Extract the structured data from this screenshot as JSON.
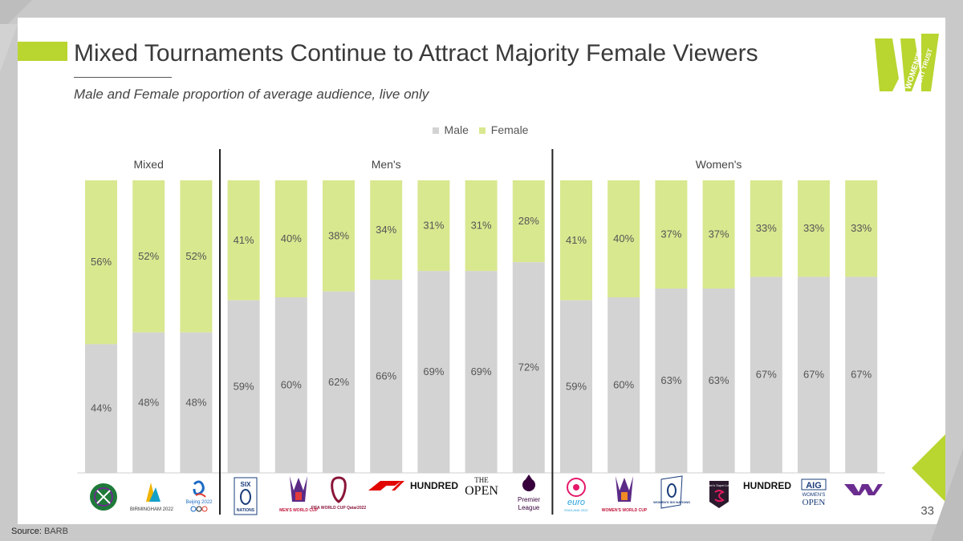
{
  "slide": {
    "title": "Mixed Tournaments Continue to Attract Majority Female Viewers",
    "subtitle": "Male and Female proportion of average audience, live only",
    "page_number": "33",
    "source_label": "Source:",
    "source_value": "BARB",
    "logo_text": "WOMEN'S SPORT TRUST"
  },
  "colors": {
    "male": "#d3d3d3",
    "female": "#d8e88f",
    "accent": "#b8d530",
    "divider": "#222222",
    "purple": "#6b2c8f"
  },
  "chart_data": {
    "type": "bar",
    "stacked": true,
    "normalized_100": true,
    "legend": [
      "Male",
      "Female"
    ],
    "legend_position": "top-center",
    "groups": [
      {
        "name": "Mixed",
        "count": 3
      },
      {
        "name": "Men's",
        "count": 7
      },
      {
        "name": "Women's",
        "count": 7
      }
    ],
    "categories": [
      "Wimbledon",
      "Birmingham 2022",
      "Beijing 2022",
      "Six Nations",
      "Rugby League Men's World Cup",
      "FIFA World Cup Qatar 2022",
      "F1",
      "The Hundred",
      "The Open",
      "Premier League",
      "Women's Euro England 2022",
      "Rugby League Women's World Cup",
      "Women's Six Nations",
      "Barclays Women's Super League",
      "The Hundred",
      "AIG Women's Open",
      "WTA"
    ],
    "series": [
      {
        "name": "Male",
        "values": [
          44,
          48,
          48,
          59,
          60,
          62,
          66,
          69,
          69,
          72,
          59,
          60,
          63,
          63,
          67,
          67,
          67
        ]
      },
      {
        "name": "Female",
        "values": [
          56,
          52,
          52,
          41,
          40,
          38,
          34,
          31,
          31,
          28,
          41,
          40,
          37,
          37,
          33,
          33,
          33
        ]
      }
    ],
    "ylim": [
      0,
      100
    ],
    "grid": false
  },
  "logo_text": {
    "birmingham": "BIRMINGHAM 2022",
    "beijing": "Beijing 2022",
    "six": "SIX",
    "nations": "NATIONS",
    "mens_wc": "MEN'S WORLD CUP",
    "fifa": "FIFA WORLD CUP Qatar2022",
    "hundred": "HUNDRED",
    "the": "THE",
    "open": "OPEN",
    "premier": "Premier",
    "league": "League",
    "euro": "euro",
    "euro_sub": "ENGLAND 2022",
    "womens_wc": "WOMEN'S WORLD CUP",
    "womens_six": "WOMEN'S SIX NATIONS",
    "wsl": "Women's Super League",
    "aig": "AIG",
    "womens": "WOMEN'S",
    "open2": "OPEN"
  }
}
